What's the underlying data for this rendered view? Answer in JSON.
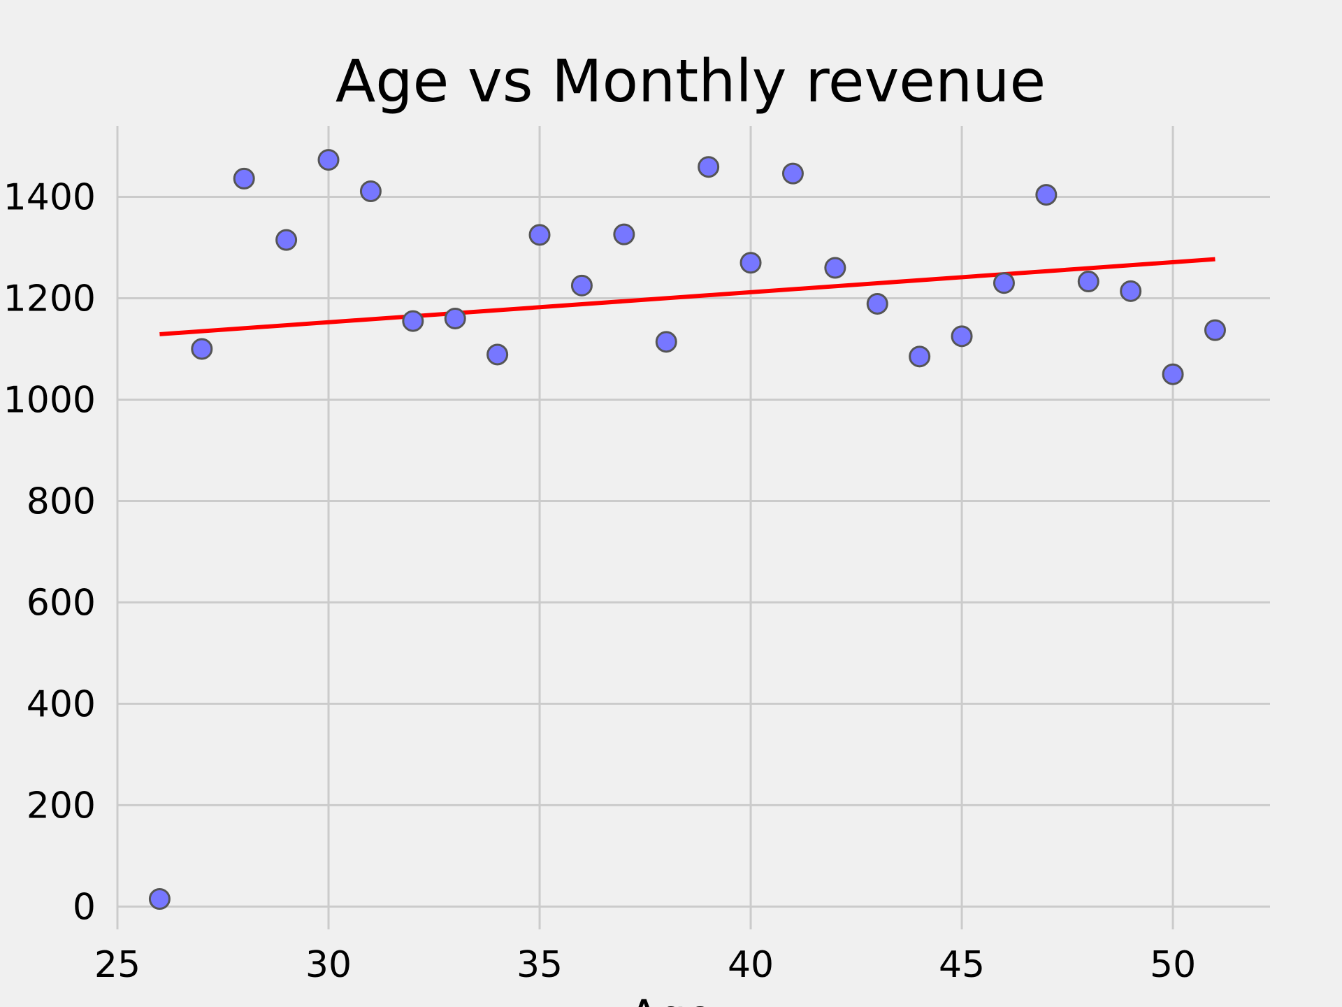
{
  "chart_data": {
    "type": "scatter",
    "title": "Age vs Monthly revenue",
    "xlabel": "Age",
    "ylabel": "",
    "xlim": [
      25,
      52.3
    ],
    "ylim": [
      -45,
      1540
    ],
    "x_ticks": [
      25,
      30,
      35,
      40,
      45,
      50
    ],
    "y_ticks": [
      0,
      200,
      400,
      600,
      800,
      1000,
      1200,
      1400
    ],
    "grid": true,
    "points": [
      {
        "x": 26,
        "y": 15
      },
      {
        "x": 27,
        "y": 1100
      },
      {
        "x": 28,
        "y": 1436
      },
      {
        "x": 29,
        "y": 1315
      },
      {
        "x": 30,
        "y": 1473
      },
      {
        "x": 31,
        "y": 1411
      },
      {
        "x": 32,
        "y": 1155
      },
      {
        "x": 33,
        "y": 1160
      },
      {
        "x": 34,
        "y": 1089
      },
      {
        "x": 35,
        "y": 1325
      },
      {
        "x": 36,
        "y": 1225
      },
      {
        "x": 37,
        "y": 1326
      },
      {
        "x": 38,
        "y": 1114
      },
      {
        "x": 39,
        "y": 1459
      },
      {
        "x": 40,
        "y": 1270
      },
      {
        "x": 41,
        "y": 1446
      },
      {
        "x": 42,
        "y": 1260
      },
      {
        "x": 43,
        "y": 1189
      },
      {
        "x": 44,
        "y": 1085
      },
      {
        "x": 45,
        "y": 1125
      },
      {
        "x": 46,
        "y": 1230
      },
      {
        "x": 47,
        "y": 1404
      },
      {
        "x": 48,
        "y": 1233
      },
      {
        "x": 49,
        "y": 1214
      },
      {
        "x": 50,
        "y": 1050
      },
      {
        "x": 51,
        "y": 1137
      }
    ],
    "trendline": {
      "x": [
        26,
        51
      ],
      "y": [
        1129,
        1277
      ],
      "color": "#ff0000"
    },
    "point_color": "#7777ff",
    "point_edge_color": "#555555"
  }
}
